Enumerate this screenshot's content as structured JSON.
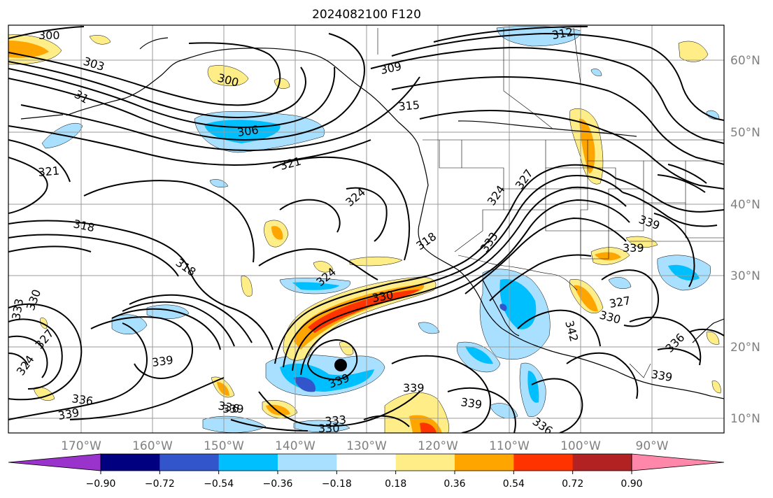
{
  "title": "2024082100 F120",
  "lat_labels": [
    "60°N",
    "50°N",
    "40°N",
    "30°N",
    "20°N",
    "10°N"
  ],
  "lon_labels": [
    "170°W",
    "160°W",
    "150°W",
    "140°W",
    "130°W",
    "120°W",
    "110°W",
    "100°W",
    "90°W"
  ],
  "colorbar": {
    "colors": [
      "#9933cc",
      "#000080",
      "#3355cc",
      "#00bfff",
      "#aae0ff",
      "#ffffff",
      "#ffee88",
      "#ffa500",
      "#ff3300",
      "#b22222",
      "#ff88aa"
    ],
    "tick_labels": [
      "−0.90",
      "−0.72",
      "−0.54",
      "−0.36",
      "−0.18",
      "0.18",
      "0.36",
      "0.54",
      "0.72",
      "0.90"
    ]
  },
  "contour_labels": [
    {
      "text": "300"
    },
    {
      "text": "303"
    },
    {
      "text": "31"
    },
    {
      "text": "300"
    },
    {
      "text": "306"
    },
    {
      "text": "309"
    },
    {
      "text": "312"
    },
    {
      "text": "315"
    },
    {
      "text": "321"
    },
    {
      "text": "321"
    },
    {
      "text": "324"
    },
    {
      "text": "318"
    },
    {
      "text": "318"
    },
    {
      "text": "318"
    },
    {
      "text": "324"
    },
    {
      "text": "327"
    },
    {
      "text": "324"
    },
    {
      "text": "333"
    },
    {
      "text": "330"
    },
    {
      "text": "339"
    },
    {
      "text": "327"
    },
    {
      "text": "330"
    },
    {
      "text": "342"
    },
    {
      "text": "336"
    },
    {
      "text": "339"
    },
    {
      "text": "339"
    },
    {
      "text": "339"
    },
    {
      "text": "339"
    },
    {
      "text": "339"
    },
    {
      "text": "336"
    },
    {
      "text": "336"
    },
    {
      "text": "339"
    },
    {
      "text": "333"
    },
    {
      "text": "330"
    },
    {
      "text": "333"
    },
    {
      "text": "330"
    },
    {
      "text": "327"
    },
    {
      "text": "324"
    },
    {
      "text": "336"
    },
    {
      "text": "339"
    },
    {
      "text": "339"
    }
  ],
  "storm_marker": {
    "lat": 17,
    "lon": "-133"
  }
}
